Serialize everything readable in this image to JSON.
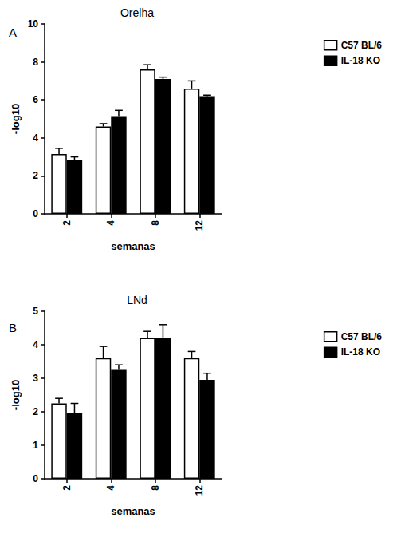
{
  "chart_data": [
    {
      "type": "bar",
      "title": "Orelha",
      "annotations": [
        "A"
      ],
      "x_label": "semanas",
      "y_label": "-log10",
      "categories": [
        "2",
        "4",
        "8",
        "12"
      ],
      "series": [
        {
          "name": "C57 BL/6",
          "color": "#ffffff",
          "values": [
            3.15,
            4.6,
            7.6,
            6.6
          ],
          "errors": [
            0.3,
            0.15,
            0.25,
            0.4
          ]
        },
        {
          "name": "IL-18 KO",
          "color": "#000000",
          "values": [
            2.85,
            5.15,
            7.1,
            6.2
          ],
          "errors": [
            0.15,
            0.3,
            0.1,
            0.05
          ]
        }
      ],
      "ylim": [
        0,
        10
      ],
      "yticks": [
        0,
        2,
        4,
        6,
        8,
        10
      ],
      "grid": false,
      "legend": "upper right"
    },
    {
      "type": "bar",
      "title": "LNd",
      "annotations": [
        "B"
      ],
      "x_label": "semanas",
      "y_label": "-log10",
      "categories": [
        "2",
        "4",
        "8",
        "12"
      ],
      "series": [
        {
          "name": "C57 BL/6",
          "color": "#ffffff",
          "values": [
            2.25,
            3.6,
            4.2,
            3.6
          ],
          "errors": [
            0.15,
            0.35,
            0.2,
            0.2
          ]
        },
        {
          "name": "IL-18 KO",
          "color": "#000000",
          "values": [
            1.95,
            3.25,
            4.2,
            2.95
          ],
          "errors": [
            0.3,
            0.15,
            0.4,
            0.2
          ]
        }
      ],
      "ylim": [
        0,
        5
      ],
      "yticks": [
        0,
        1,
        2,
        3,
        4,
        5
      ],
      "grid": false,
      "legend": "upper right"
    }
  ]
}
